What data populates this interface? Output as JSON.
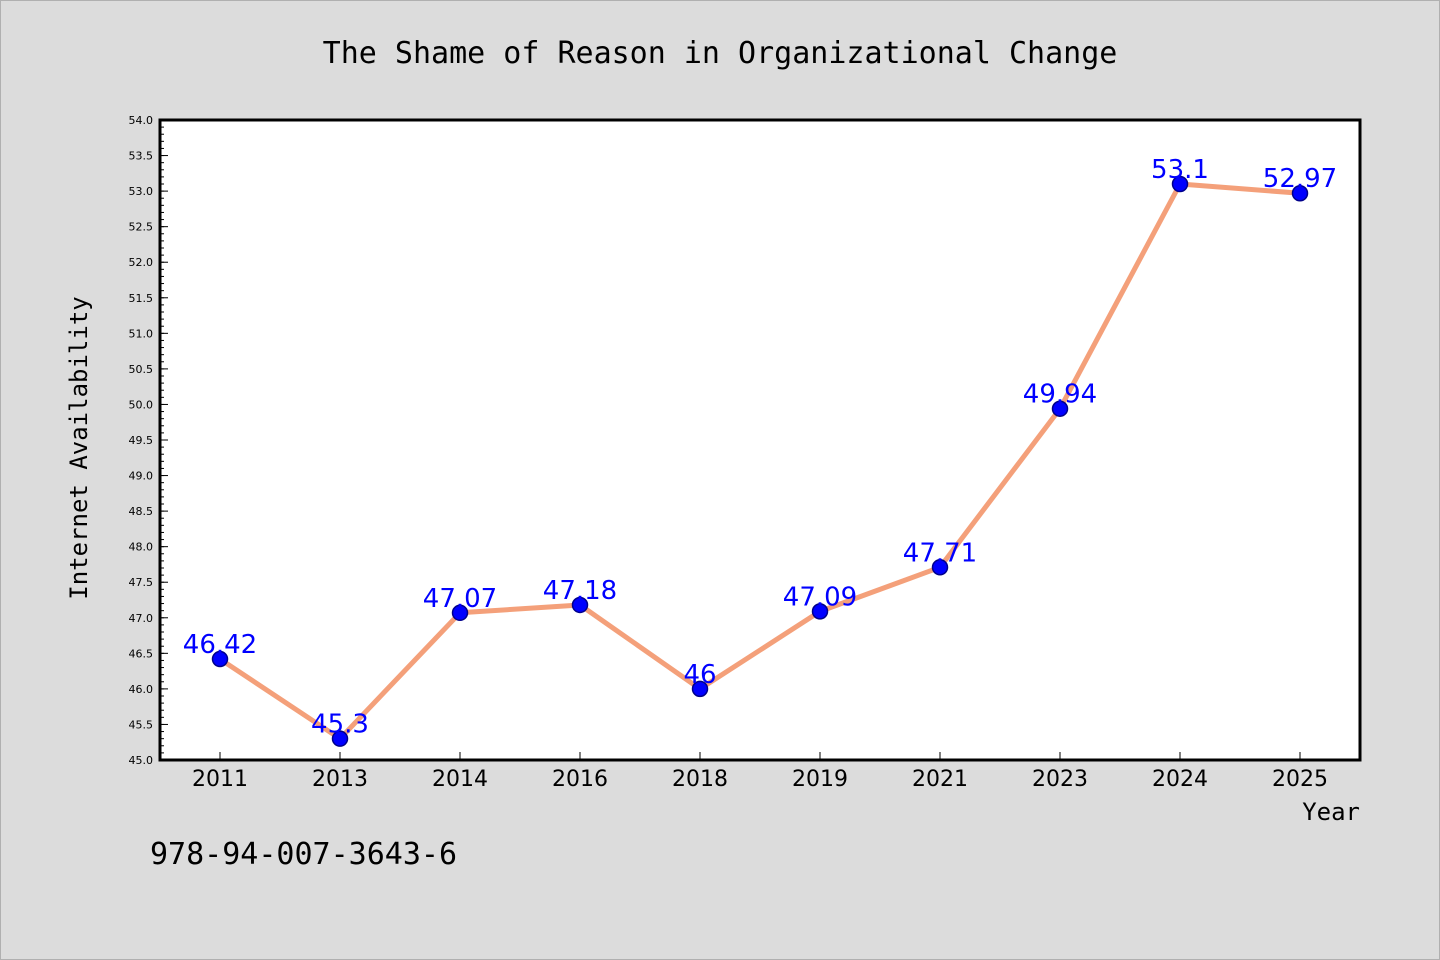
{
  "chart_data": {
    "type": "line",
    "title": "The Shame of Reason in Organizational Change",
    "xlabel": "Year",
    "ylabel": "Internet Availability",
    "categories": [
      "2011",
      "2013",
      "2014",
      "2016",
      "2018",
      "2019",
      "2021",
      "2023",
      "2024",
      "2025"
    ],
    "values": [
      46.42,
      45.3,
      47.07,
      47.18,
      46.0,
      47.09,
      47.71,
      49.94,
      53.1,
      52.97
    ],
    "data_labels": [
      "46.42",
      "45.3",
      "47.07",
      "47.18",
      "46",
      "47.09",
      "47.71",
      "49.94",
      "53.1",
      "52.97"
    ],
    "ylim": [
      45.0,
      54.0
    ],
    "y_ticks": [
      "45.0",
      "45.5",
      "46.0",
      "46.5",
      "47.0",
      "47.5",
      "48.0",
      "48.5",
      "49.0",
      "49.5",
      "50.0",
      "50.5",
      "51.0",
      "51.5",
      "52.0",
      "52.5",
      "53.0",
      "53.5",
      "54.0"
    ],
    "grid": false,
    "legend": "none",
    "colors": {
      "line": "#f4a07a",
      "marker_fill": "#0000ff",
      "marker_edge": "#00008b",
      "data_label": "#0000ff",
      "background": "#dcdcdc",
      "plot_background": "#ffffff"
    }
  },
  "footer": {
    "isbn": "978-94-007-3643-6"
  }
}
